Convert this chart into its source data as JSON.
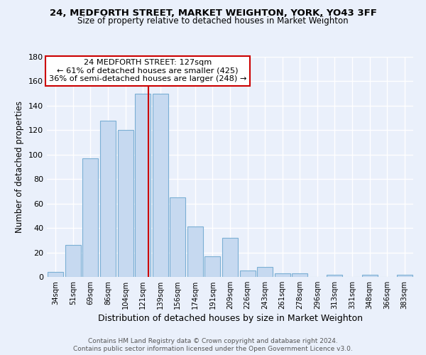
{
  "title1": "24, MEDFORTH STREET, MARKET WEIGHTON, YORK, YO43 3FF",
  "title2": "Size of property relative to detached houses in Market Weighton",
  "xlabel": "Distribution of detached houses by size in Market Weighton",
  "ylabel": "Number of detached properties",
  "bar_labels": [
    "34sqm",
    "51sqm",
    "69sqm",
    "86sqm",
    "104sqm",
    "121sqm",
    "139sqm",
    "156sqm",
    "174sqm",
    "191sqm",
    "209sqm",
    "226sqm",
    "243sqm",
    "261sqm",
    "278sqm",
    "296sqm",
    "313sqm",
    "331sqm",
    "348sqm",
    "366sqm",
    "383sqm"
  ],
  "bar_values": [
    4,
    26,
    97,
    128,
    120,
    150,
    150,
    65,
    41,
    17,
    32,
    5,
    8,
    3,
    3,
    0,
    2,
    0,
    2,
    0,
    2
  ],
  "bar_color": "#c6d9f0",
  "bar_edge_color": "#7bafd4",
  "property_line_label": "24 MEDFORTH STREET: 127sqm",
  "annotation_line1": "← 61% of detached houses are smaller (425)",
  "annotation_line2": "36% of semi-detached houses are larger (248) →",
  "vline_color": "#cc0000",
  "ylim": [
    0,
    180
  ],
  "yticks": [
    0,
    20,
    40,
    60,
    80,
    100,
    120,
    140,
    160,
    180
  ],
  "background_color": "#eaf0fb",
  "grid_color": "#ffffff",
  "annotation_box_color": "#ffffff",
  "annotation_box_edge": "#cc0000",
  "footer1": "Contains HM Land Registry data © Crown copyright and database right 2024.",
  "footer2": "Contains public sector information licensed under the Open Government Licence v3.0."
}
